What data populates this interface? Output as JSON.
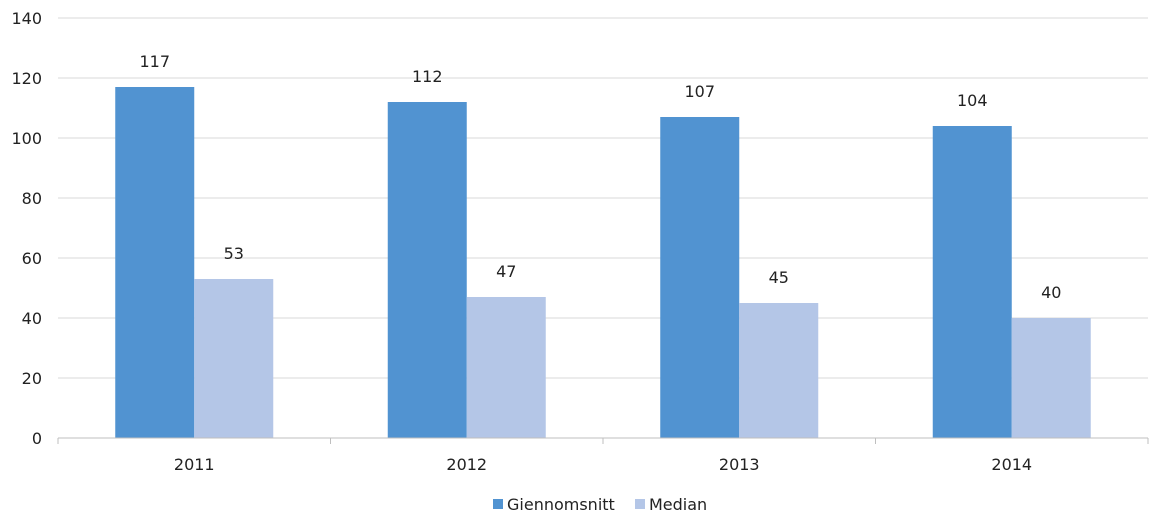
{
  "chart_data": {
    "type": "bar",
    "categories": [
      "2011",
      "2012",
      "2013",
      "2014"
    ],
    "series": [
      {
        "name": "Giennomsnitt",
        "values": [
          117,
          112,
          107,
          104
        ],
        "color": "#5193d1"
      },
      {
        "name": "Median",
        "values": [
          53,
          47,
          45,
          40
        ],
        "color": "#b4c6e7"
      }
    ],
    "y_ticks": [
      "0",
      "20",
      "40",
      "60",
      "80",
      "100",
      "120",
      "140"
    ],
    "ylim": [
      0,
      140
    ],
    "grid": true,
    "grid_color": "#d9d9d9",
    "axis_color": "#bfbfbf",
    "legend_position": "bottom"
  }
}
